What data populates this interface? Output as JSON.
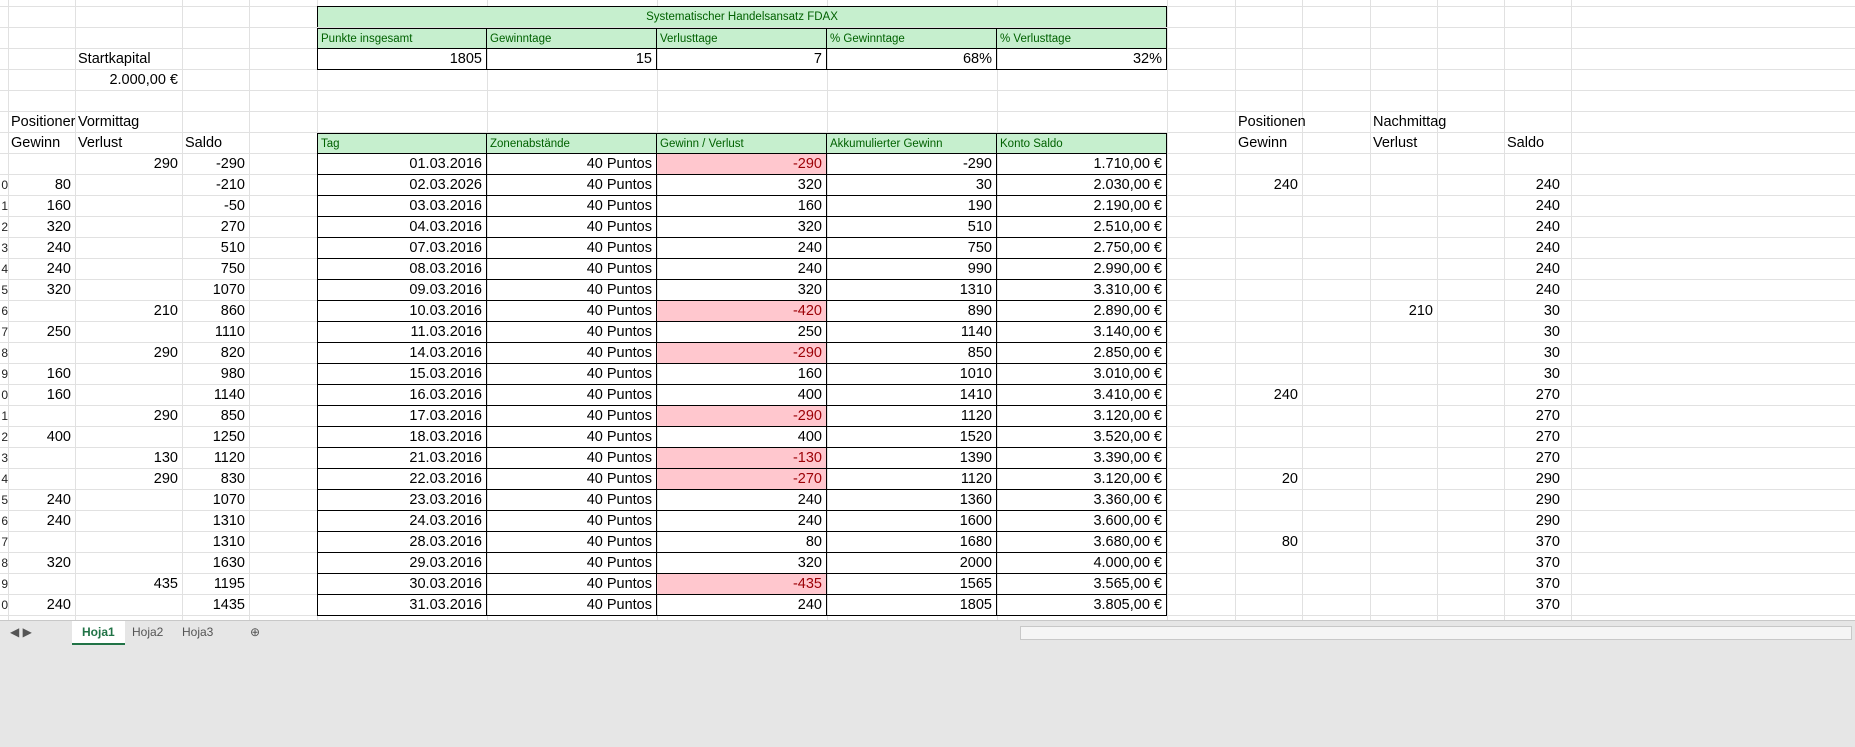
{
  "summary": {
    "title": "Systematischer Handelsansatz FDAX",
    "headers": [
      "Punkte insgesamt",
      "Gewinntage",
      "Verlusttage",
      "% Gewinntage",
      "% Verlusttage"
    ],
    "values": [
      "1805",
      "15",
      "7",
      "68%",
      "32%"
    ]
  },
  "startkapital": {
    "label": "Startkapital",
    "value": "2.000,00 €"
  },
  "left_block": {
    "header1": [
      "Positioner",
      "Vormittag"
    ],
    "header2": [
      "Gewinn",
      "Verlust",
      "Saldo"
    ]
  },
  "main_table": {
    "headers": [
      "Tag",
      "Zonenabstände",
      "Gewinn / Verlust",
      "Akkumulierter Gewinn",
      "Konto Saldo"
    ]
  },
  "right_block": {
    "header1": [
      "Positionen",
      "Nachmittag"
    ],
    "header2": [
      "Gewinn",
      "Verlust",
      "Saldo"
    ]
  },
  "row_numbers": [
    "",
    "0",
    "1",
    "2",
    "3",
    "4",
    "5",
    "6",
    "7",
    "8",
    "9",
    "0",
    "1",
    "2",
    "3",
    "4",
    "5",
    "6",
    "7",
    "8",
    "9",
    "0"
  ],
  "rows": [
    {
      "lg": "",
      "lv": "290",
      "ls": "-290",
      "tag": "01.03.2016",
      "zone": "40 Puntos",
      "gv": "-290",
      "neg": true,
      "akk": "-290",
      "konto": "1.710,00 €",
      "rg": "",
      "rv": "",
      "rs": ""
    },
    {
      "lg": "80",
      "lv": "",
      "ls": "-210",
      "tag": "02.03.2026",
      "zone": "40 Puntos",
      "gv": "320",
      "neg": false,
      "akk": "30",
      "konto": "2.030,00 €",
      "rg": "240",
      "rv": "",
      "rs": "240"
    },
    {
      "lg": "160",
      "lv": "",
      "ls": "-50",
      "tag": "03.03.2016",
      "zone": "40 Puntos",
      "gv": "160",
      "neg": false,
      "akk": "190",
      "konto": "2.190,00 €",
      "rg": "",
      "rv": "",
      "rs": "240"
    },
    {
      "lg": "320",
      "lv": "",
      "ls": "270",
      "tag": "04.03.2016",
      "zone": "40 Puntos",
      "gv": "320",
      "neg": false,
      "akk": "510",
      "konto": "2.510,00 €",
      "rg": "",
      "rv": "",
      "rs": "240"
    },
    {
      "lg": "240",
      "lv": "",
      "ls": "510",
      "tag": "07.03.2016",
      "zone": "40 Puntos",
      "gv": "240",
      "neg": false,
      "akk": "750",
      "konto": "2.750,00 €",
      "rg": "",
      "rv": "",
      "rs": "240"
    },
    {
      "lg": "240",
      "lv": "",
      "ls": "750",
      "tag": "08.03.2016",
      "zone": "40 Puntos",
      "gv": "240",
      "neg": false,
      "akk": "990",
      "konto": "2.990,00 €",
      "rg": "",
      "rv": "",
      "rs": "240"
    },
    {
      "lg": "320",
      "lv": "",
      "ls": "1070",
      "tag": "09.03.2016",
      "zone": "40 Puntos",
      "gv": "320",
      "neg": false,
      "akk": "1310",
      "konto": "3.310,00 €",
      "rg": "",
      "rv": "",
      "rs": "240"
    },
    {
      "lg": "",
      "lv": "210",
      "ls": "860",
      "tag": "10.03.2016",
      "zone": "40 Puntos",
      "gv": "-420",
      "neg": true,
      "akk": "890",
      "konto": "2.890,00 €",
      "rg": "",
      "rv": "210",
      "rs": "30"
    },
    {
      "lg": "250",
      "lv": "",
      "ls": "1110",
      "tag": "11.03.2016",
      "zone": "40 Puntos",
      "gv": "250",
      "neg": false,
      "akk": "1140",
      "konto": "3.140,00 €",
      "rg": "",
      "rv": "",
      "rs": "30"
    },
    {
      "lg": "",
      "lv": "290",
      "ls": "820",
      "tag": "14.03.2016",
      "zone": "40 Puntos",
      "gv": "-290",
      "neg": true,
      "akk": "850",
      "konto": "2.850,00 €",
      "rg": "",
      "rv": "",
      "rs": "30"
    },
    {
      "lg": "160",
      "lv": "",
      "ls": "980",
      "tag": "15.03.2016",
      "zone": "40 Puntos",
      "gv": "160",
      "neg": false,
      "akk": "1010",
      "konto": "3.010,00 €",
      "rg": "",
      "rv": "",
      "rs": "30"
    },
    {
      "lg": "160",
      "lv": "",
      "ls": "1140",
      "tag": "16.03.2016",
      "zone": "40 Puntos",
      "gv": "400",
      "neg": false,
      "akk": "1410",
      "konto": "3.410,00 €",
      "rg": "240",
      "rv": "",
      "rs": "270"
    },
    {
      "lg": "",
      "lv": "290",
      "ls": "850",
      "tag": "17.03.2016",
      "zone": "40 Puntos",
      "gv": "-290",
      "neg": true,
      "akk": "1120",
      "konto": "3.120,00 €",
      "rg": "",
      "rv": "",
      "rs": "270"
    },
    {
      "lg": "400",
      "lv": "",
      "ls": "1250",
      "tag": "18.03.2016",
      "zone": "40 Puntos",
      "gv": "400",
      "neg": false,
      "akk": "1520",
      "konto": "3.520,00 €",
      "rg": "",
      "rv": "",
      "rs": "270"
    },
    {
      "lg": "",
      "lv": "130",
      "ls": "1120",
      "tag": "21.03.2016",
      "zone": "40 Puntos",
      "gv": "-130",
      "neg": true,
      "akk": "1390",
      "konto": "3.390,00 €",
      "rg": "",
      "rv": "",
      "rs": "270"
    },
    {
      "lg": "",
      "lv": "290",
      "ls": "830",
      "tag": "22.03.2016",
      "zone": "40 Puntos",
      "gv": "-270",
      "neg": true,
      "akk": "1120",
      "konto": "3.120,00 €",
      "rg": "20",
      "rv": "",
      "rs": "290"
    },
    {
      "lg": "240",
      "lv": "",
      "ls": "1070",
      "tag": "23.03.2016",
      "zone": "40 Puntos",
      "gv": "240",
      "neg": false,
      "akk": "1360",
      "konto": "3.360,00 €",
      "rg": "",
      "rv": "",
      "rs": "290"
    },
    {
      "lg": "240",
      "lv": "",
      "ls": "1310",
      "tag": "24.03.2016",
      "zone": "40 Puntos",
      "gv": "240",
      "neg": false,
      "akk": "1600",
      "konto": "3.600,00 €",
      "rg": "",
      "rv": "",
      "rs": "290"
    },
    {
      "lg": "",
      "lv": "",
      "ls": "1310",
      "tag": "28.03.2016",
      "zone": "40 Puntos",
      "gv": "80",
      "neg": false,
      "akk": "1680",
      "konto": "3.680,00 €",
      "rg": "80",
      "rv": "",
      "rs": "370"
    },
    {
      "lg": "320",
      "lv": "",
      "ls": "1630",
      "tag": "29.03.2016",
      "zone": "40 Puntos",
      "gv": "320",
      "neg": false,
      "akk": "2000",
      "konto": "4.000,00 €",
      "rg": "",
      "rv": "",
      "rs": "370"
    },
    {
      "lg": "",
      "lv": "435",
      "ls": "1195",
      "tag": "30.03.2016",
      "zone": "40 Puntos",
      "gv": "-435",
      "neg": true,
      "akk": "1565",
      "konto": "3.565,00 €",
      "rg": "",
      "rv": "",
      "rs": "370"
    },
    {
      "lg": "240",
      "lv": "",
      "ls": "1435",
      "tag": "31.03.2016",
      "zone": "40 Puntos",
      "gv": "240",
      "neg": false,
      "akk": "1805",
      "konto": "3.805,00 €",
      "rg": "",
      "rv": "",
      "rs": "370"
    }
  ],
  "sheet_tabs": [
    "Hoja1",
    "Hoja2",
    "Hoja3"
  ],
  "colors": {
    "header_fill": "#c6efce",
    "header_text": "#006100",
    "neg_fill": "#ffc7ce",
    "neg_text": "#9c0006"
  }
}
